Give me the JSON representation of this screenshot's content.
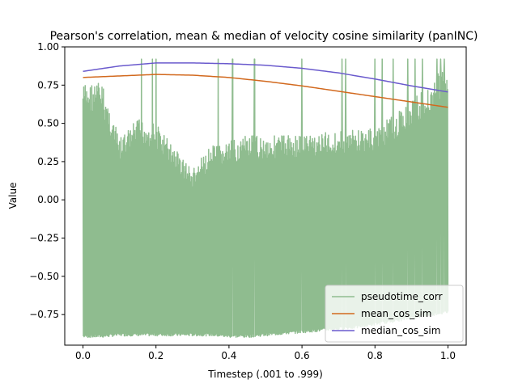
{
  "chart_data": {
    "type": "line",
    "title": "Pearson's correlation, mean & median of velocity cosine similarity (panINC)",
    "xlabel": "Timestep (.001 to .999)",
    "ylabel": "Value",
    "xlim": [
      -0.05,
      1.05
    ],
    "ylim": [
      -0.95,
      1.0
    ],
    "xticks": [
      0.0,
      0.2,
      0.4,
      0.6,
      0.8,
      1.0
    ],
    "xtick_labels": [
      "0.0",
      "0.2",
      "0.4",
      "0.6",
      "0.8",
      "1.0"
    ],
    "yticks": [
      1.0,
      0.75,
      0.5,
      0.25,
      0.0,
      -0.25,
      -0.5,
      -0.75
    ],
    "ytick_labels": [
      "1.00",
      "0.75",
      "0.50",
      "0.25",
      "0.00",
      "−0.25",
      "−0.50",
      "−0.75"
    ],
    "grid": false,
    "legend_placement": "lower-right",
    "series": [
      {
        "name": "pseudotime_corr",
        "color": "#8fbc8f",
        "style": "dense oscillation",
        "envelope": {
          "x": [
            0.0,
            0.05,
            0.1,
            0.15,
            0.2,
            0.25,
            0.3,
            0.35,
            0.4,
            0.45,
            0.5,
            0.55,
            0.6,
            0.65,
            0.7,
            0.75,
            0.8,
            0.85,
            0.9,
            0.95,
            1.0
          ],
          "upper": [
            0.76,
            0.78,
            0.4,
            0.53,
            0.5,
            0.35,
            0.2,
            0.35,
            0.38,
            0.42,
            0.42,
            0.43,
            0.43,
            0.44,
            0.45,
            0.46,
            0.47,
            0.55,
            0.65,
            0.75,
            0.92
          ],
          "lower": [
            -0.9,
            -0.9,
            -0.89,
            -0.89,
            -0.89,
            -0.89,
            -0.89,
            -0.89,
            -0.9,
            -0.9,
            -0.89,
            -0.88,
            -0.87,
            -0.86,
            -0.85,
            -0.84,
            -0.82,
            -0.8,
            -0.78,
            -0.76,
            -0.74
          ],
          "spike_x": [
            0.16,
            0.19,
            0.2,
            0.37,
            0.41,
            0.47,
            0.6,
            0.71,
            0.72,
            0.8,
            0.82,
            0.85,
            0.89,
            0.91,
            0.93,
            0.97,
            0.98,
            0.99
          ],
          "spike_value": 0.92
        }
      },
      {
        "name": "mean_cos_sim",
        "color": "#d2691e",
        "x": [
          0.0,
          0.1,
          0.2,
          0.3,
          0.4,
          0.5,
          0.6,
          0.7,
          0.8,
          0.9,
          1.0
        ],
        "values": [
          0.8,
          0.81,
          0.82,
          0.815,
          0.8,
          0.775,
          0.745,
          0.71,
          0.675,
          0.64,
          0.605
        ]
      },
      {
        "name": "median_cos_sim",
        "color": "#6a5acd",
        "x": [
          0.0,
          0.1,
          0.2,
          0.3,
          0.4,
          0.5,
          0.6,
          0.7,
          0.8,
          0.9,
          1.0
        ],
        "values": [
          0.84,
          0.875,
          0.895,
          0.895,
          0.89,
          0.88,
          0.86,
          0.83,
          0.79,
          0.745,
          0.705
        ]
      }
    ]
  }
}
